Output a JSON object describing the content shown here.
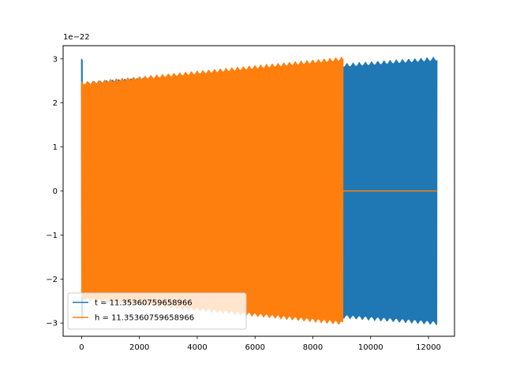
{
  "chart_data": {
    "type": "line",
    "title": "",
    "xlabel": "",
    "ylabel": "",
    "xlim": [
      -640,
      12900
    ],
    "ylim": [
      -3.3e-22,
      3.3e-22
    ],
    "y_offset_label": "1e−22",
    "x_ticks": [
      0,
      2000,
      4000,
      6000,
      8000,
      10000,
      12000
    ],
    "x_tick_labels": [
      "0",
      "2000",
      "4000",
      "6000",
      "8000",
      "10000",
      "12000"
    ],
    "y_ticks": [
      -3,
      -2,
      -1,
      0,
      1,
      2,
      3
    ],
    "y_tick_labels": [
      "−3",
      "−2",
      "−1",
      "0",
      "1",
      "2",
      "3"
    ],
    "grid": false,
    "legend_position": "lower-left",
    "series": [
      {
        "name": "t = 11.35360759658966",
        "color": "#1f77b4",
        "envelope": {
          "x_range": [
            0,
            12290
          ],
          "start_amplitude": 3e-22,
          "early_amplitude": 2.48e-22,
          "end_amplitude": 3.05e-22
        }
      },
      {
        "name": "h = 11.35360759658966",
        "color": "#ff7f0e",
        "envelope": {
          "x_range": [
            0,
            9040
          ],
          "early_amplitude": 2.48e-22,
          "end_amplitude": 3.05e-22,
          "tail_x_range": [
            9040,
            12290
          ],
          "tail_value": 0
        }
      }
    ]
  }
}
